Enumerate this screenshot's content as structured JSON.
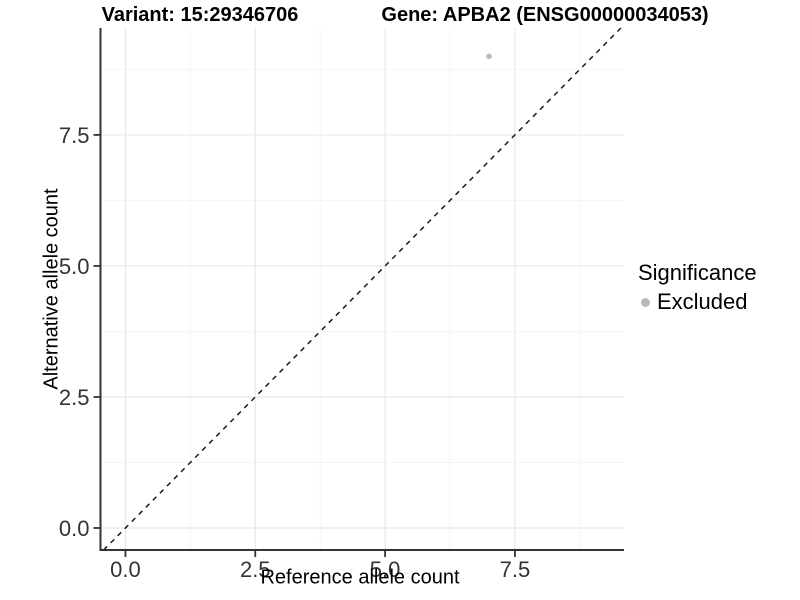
{
  "chart_data": {
    "type": "scatter",
    "title_left": "Variant: 15:29346706",
    "title_right": "Gene: APBA2 (ENSG00000034053)",
    "xlabel": "Reference allele count",
    "ylabel": "Alternative allele count",
    "xlim": [
      -0.48,
      9.6
    ],
    "ylim": [
      -0.42,
      9.54
    ],
    "x_ticks": {
      "values": [
        0,
        2.5,
        5,
        7.5
      ],
      "labels": [
        "0.0",
        "2.5",
        "5.0",
        "7.5"
      ]
    },
    "y_ticks": {
      "values": [
        0,
        2.5,
        5,
        7.5
      ],
      "labels": [
        "0.0",
        "2.5",
        "5.0",
        "7.5"
      ]
    },
    "minor_gridlines": [
      1.25,
      3.75,
      6.25,
      8.75
    ],
    "grid": {
      "on": true,
      "major_color": "#e8e8e8",
      "minor_color": "#f4f4f4"
    },
    "points": [
      {
        "x": 7,
        "y": 9,
        "significance": "Excluded"
      }
    ],
    "point_style": {
      "color": "#b9b9b9",
      "radius": 2.8
    },
    "identity_line": {
      "equation": "y = x",
      "style": "dashed",
      "color": "#1a1a1a"
    },
    "axis_color": "#333333",
    "legend": {
      "position": "right",
      "title": "Significance",
      "entries": [
        {
          "label": "Excluded",
          "color": "#b9b9b9",
          "marker": "circle"
        }
      ]
    }
  }
}
